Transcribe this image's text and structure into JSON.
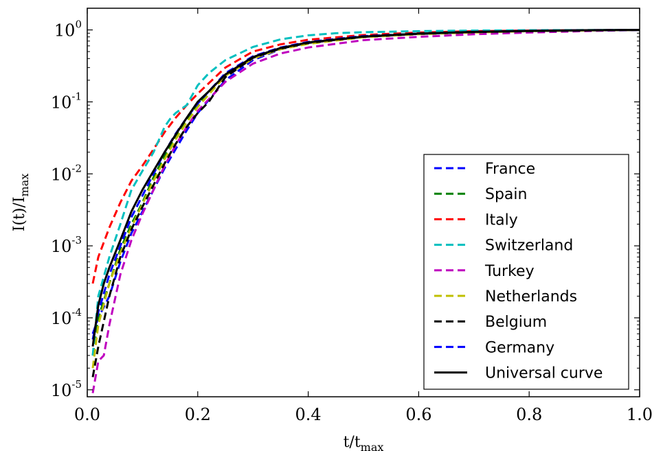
{
  "chart_data": {
    "type": "line",
    "xlabel": "t/t",
    "xlabel_sub": "max",
    "ylabel": "I(t)/I",
    "ylabel_sub": "max",
    "xlim": [
      0.0,
      1.0
    ],
    "ylim": [
      8e-06,
      2.0
    ],
    "y_scale": "log",
    "grid": false,
    "legend_position": "lower-right",
    "x_ticks": [
      {
        "value": 0.0,
        "label": "0.0"
      },
      {
        "value": 0.2,
        "label": "0.2"
      },
      {
        "value": 0.4,
        "label": "0.4"
      },
      {
        "value": 0.6,
        "label": "0.6"
      },
      {
        "value": 0.8,
        "label": "0.8"
      },
      {
        "value": 1.0,
        "label": "1.0"
      }
    ],
    "y_ticks": [
      {
        "value": 1e-05,
        "base": "10",
        "exp": "-5"
      },
      {
        "value": 0.0001,
        "base": "10",
        "exp": "-4"
      },
      {
        "value": 0.001,
        "base": "10",
        "exp": "-3"
      },
      {
        "value": 0.01,
        "base": "10",
        "exp": "-2"
      },
      {
        "value": 0.1,
        "base": "10",
        "exp": "-1"
      },
      {
        "value": 1.0,
        "base": "10",
        "exp": "0"
      }
    ],
    "series": [
      {
        "name": "France",
        "color": "#0000ff",
        "dashed": true,
        "x": [
          0.01,
          0.02,
          0.04,
          0.06,
          0.08,
          0.1,
          0.12,
          0.14,
          0.16,
          0.18,
          0.2,
          0.25,
          0.3,
          0.35,
          0.4,
          0.5,
          0.6,
          0.7,
          0.8,
          0.9,
          1.0
        ],
        "y": [
          6e-05,
          0.0001,
          0.0002,
          0.0006,
          0.0015,
          0.003,
          0.006,
          0.012,
          0.022,
          0.04,
          0.07,
          0.2,
          0.38,
          0.54,
          0.65,
          0.8,
          0.88,
          0.93,
          0.96,
          0.98,
          1.0
        ]
      },
      {
        "name": "Spain",
        "color": "#008000",
        "dashed": true,
        "x": [
          0.01,
          0.02,
          0.04,
          0.06,
          0.08,
          0.1,
          0.12,
          0.14,
          0.16,
          0.18,
          0.2,
          0.25,
          0.3,
          0.35,
          0.4,
          0.5,
          0.6,
          0.7,
          0.8,
          0.9,
          1.0
        ],
        "y": [
          3e-05,
          0.0001,
          0.0003,
          0.0009,
          0.002,
          0.004,
          0.009,
          0.018,
          0.034,
          0.058,
          0.09,
          0.24,
          0.42,
          0.56,
          0.67,
          0.81,
          0.89,
          0.94,
          0.97,
          0.99,
          1.0
        ]
      },
      {
        "name": "Italy",
        "color": "#ff0000",
        "dashed": true,
        "x": [
          0.01,
          0.02,
          0.04,
          0.06,
          0.08,
          0.1,
          0.12,
          0.14,
          0.16,
          0.18,
          0.2,
          0.25,
          0.3,
          0.35,
          0.4,
          0.5,
          0.6,
          0.7,
          0.8,
          0.9,
          1.0
        ],
        "y": [
          0.0003,
          0.0007,
          0.0018,
          0.004,
          0.008,
          0.013,
          0.022,
          0.038,
          0.06,
          0.09,
          0.13,
          0.3,
          0.5,
          0.63,
          0.73,
          0.85,
          0.92,
          0.96,
          0.98,
          0.99,
          1.0
        ]
      },
      {
        "name": "Switzerland",
        "color": "#00bfbf",
        "dashed": true,
        "x": [
          0.01,
          0.02,
          0.04,
          0.06,
          0.08,
          0.1,
          0.12,
          0.14,
          0.15,
          0.16,
          0.18,
          0.2,
          0.22,
          0.25,
          0.3,
          0.35,
          0.4,
          0.45,
          0.5,
          0.6,
          0.7,
          0.8,
          0.9,
          1.0
        ],
        "y": [
          3e-05,
          0.0002,
          0.0007,
          0.002,
          0.006,
          0.011,
          0.02,
          0.045,
          0.058,
          0.07,
          0.09,
          0.17,
          0.25,
          0.38,
          0.58,
          0.74,
          0.84,
          0.9,
          0.93,
          0.96,
          0.98,
          0.99,
          0.995,
          1.0
        ]
      },
      {
        "name": "Turkey",
        "color": "#bf00bf",
        "dashed": true,
        "x": [
          0.01,
          0.02,
          0.03,
          0.04,
          0.06,
          0.08,
          0.1,
          0.12,
          0.14,
          0.16,
          0.18,
          0.2,
          0.25,
          0.3,
          0.35,
          0.4,
          0.5,
          0.6,
          0.7,
          0.8,
          0.9,
          1.0
        ],
        "y": [
          9e-06,
          2.5e-05,
          3e-05,
          8e-05,
          0.0004,
          0.0012,
          0.0028,
          0.006,
          0.013,
          0.025,
          0.045,
          0.075,
          0.19,
          0.34,
          0.47,
          0.57,
          0.72,
          0.8,
          0.87,
          0.92,
          0.96,
          1.0
        ]
      },
      {
        "name": "Netherlands",
        "color": "#bfbf00",
        "dashed": true,
        "x": [
          0.01,
          0.02,
          0.04,
          0.06,
          0.08,
          0.1,
          0.12,
          0.14,
          0.16,
          0.18,
          0.2,
          0.25,
          0.3,
          0.35,
          0.4,
          0.5,
          0.6,
          0.7,
          0.8,
          0.9,
          1.0
        ],
        "y": [
          2e-05,
          8e-05,
          0.0003,
          0.0008,
          0.0018,
          0.0038,
          0.008,
          0.016,
          0.03,
          0.052,
          0.085,
          0.23,
          0.4,
          0.54,
          0.64,
          0.79,
          0.87,
          0.92,
          0.96,
          0.98,
          1.0
        ]
      },
      {
        "name": "Belgium",
        "color": "#000000",
        "dashed": true,
        "x": [
          0.01,
          0.02,
          0.04,
          0.06,
          0.08,
          0.1,
          0.12,
          0.14,
          0.16,
          0.18,
          0.2,
          0.22,
          0.25,
          0.3,
          0.35,
          0.4,
          0.5,
          0.6,
          0.7,
          0.8,
          0.9,
          1.0
        ],
        "y": [
          1.5e-05,
          4e-05,
          0.0002,
          0.0007,
          0.0017,
          0.0035,
          0.007,
          0.014,
          0.026,
          0.045,
          0.07,
          0.1,
          0.22,
          0.41,
          0.55,
          0.66,
          0.8,
          0.88,
          0.93,
          0.96,
          0.98,
          1.0
        ]
      },
      {
        "name": "Germany",
        "color": "#0000ff",
        "dashed": true,
        "x": [
          0.01,
          0.02,
          0.04,
          0.06,
          0.08,
          0.1,
          0.12,
          0.14,
          0.16,
          0.18,
          0.2,
          0.25,
          0.3,
          0.35,
          0.4,
          0.5,
          0.6,
          0.7,
          0.8,
          0.9,
          1.0
        ],
        "y": [
          5e-05,
          0.00012,
          0.0004,
          0.001,
          0.0025,
          0.005,
          0.01,
          0.02,
          0.036,
          0.06,
          0.095,
          0.25,
          0.43,
          0.57,
          0.68,
          0.82,
          0.89,
          0.94,
          0.97,
          0.99,
          1.0
        ]
      },
      {
        "name": "Universal curve",
        "color": "#000000",
        "dashed": false,
        "x": [
          0.01,
          0.02,
          0.03,
          0.04,
          0.06,
          0.08,
          0.1,
          0.12,
          0.14,
          0.16,
          0.18,
          0.2,
          0.22,
          0.25,
          0.3,
          0.35,
          0.4,
          0.5,
          0.6,
          0.7,
          0.8,
          0.9,
          1.0
        ],
        "y": [
          4e-05,
          0.00015,
          0.0003,
          0.0005,
          0.0012,
          0.003,
          0.006,
          0.011,
          0.02,
          0.035,
          0.06,
          0.1,
          0.14,
          0.24,
          0.42,
          0.56,
          0.67,
          0.81,
          0.89,
          0.94,
          0.97,
          0.99,
          1.0
        ]
      }
    ]
  }
}
